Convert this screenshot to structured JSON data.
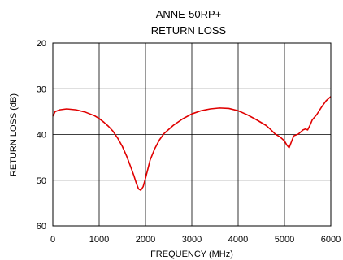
{
  "chart_data": {
    "type": "line",
    "title": "ANNE-50RP+",
    "subtitle": "RETURN LOSS",
    "xlabel": "FREQUENCY (MHz)",
    "ylabel": "RETURN LOSS (dB)",
    "xlim": [
      0,
      6000
    ],
    "ylim": [
      20,
      60
    ],
    "y_inverted": true,
    "x_ticks": [
      0,
      1000,
      2000,
      3000,
      4000,
      5000,
      6000
    ],
    "y_ticks": [
      20,
      30,
      40,
      50,
      60
    ],
    "grid": true,
    "series": [
      {
        "color": "#e00000",
        "x": [
          0,
          50,
          150,
          300,
          500,
          700,
          900,
          1000,
          1100,
          1200,
          1300,
          1400,
          1500,
          1600,
          1700,
          1750,
          1800,
          1850,
          1900,
          1950,
          2000,
          2050,
          2100,
          2200,
          2300,
          2400,
          2600,
          2800,
          3000,
          3200,
          3400,
          3600,
          3800,
          4000,
          4200,
          4400,
          4600,
          4700,
          4800,
          4900,
          5000,
          5050,
          5100,
          5150,
          5200,
          5300,
          5400,
          5450,
          5500,
          5550,
          5600,
          5700,
          5800,
          5900,
          6000
        ],
        "values": [
          36.0,
          35.0,
          34.6,
          34.4,
          34.6,
          35.1,
          35.9,
          36.5,
          37.3,
          38.2,
          39.3,
          40.8,
          42.6,
          44.9,
          47.6,
          49.0,
          50.6,
          51.9,
          52.2,
          51.4,
          49.6,
          47.6,
          45.6,
          43.1,
          41.2,
          39.8,
          38.0,
          36.6,
          35.5,
          34.8,
          34.4,
          34.2,
          34.3,
          34.8,
          35.7,
          36.8,
          38.0,
          38.9,
          39.9,
          40.5,
          41.4,
          42.3,
          42.9,
          41.6,
          40.3,
          39.9,
          39.0,
          38.8,
          39.0,
          38.0,
          36.8,
          35.6,
          34.0,
          32.6,
          31.7
        ]
      }
    ]
  }
}
